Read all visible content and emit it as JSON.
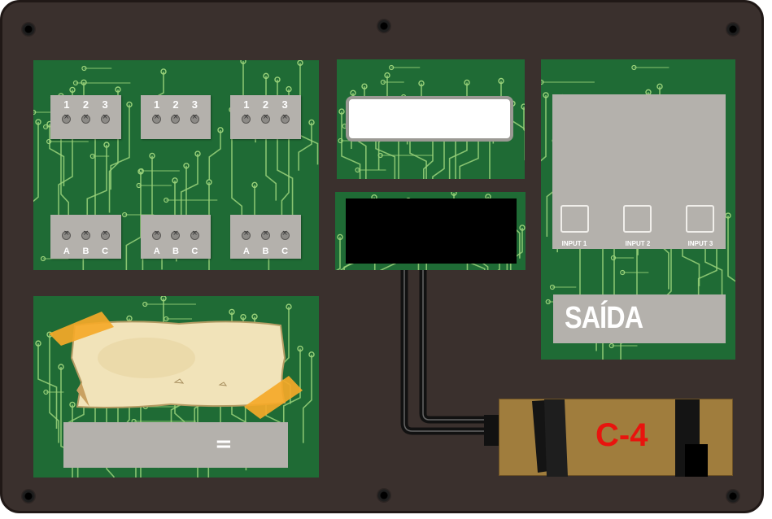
{
  "board": {
    "top_pins": {
      "labels": [
        "1",
        "2",
        "3"
      ]
    },
    "bottom_pins": {
      "labels": [
        "A",
        "B",
        "C"
      ]
    },
    "outputs": {
      "inputs": [
        "INPUT 1",
        "INPUT 2",
        "INPUT 3"
      ],
      "title": "SAÍDA"
    },
    "answer": {
      "symbol": "="
    },
    "bomb": {
      "label": "C-4"
    },
    "colors": {
      "pcb": "#1f6b35",
      "trace": "#9ad27a",
      "panel": "#b4b1ac",
      "case": "#3a302d",
      "bomb": "#a07d3d",
      "bomb_label": "#e8140e"
    }
  }
}
